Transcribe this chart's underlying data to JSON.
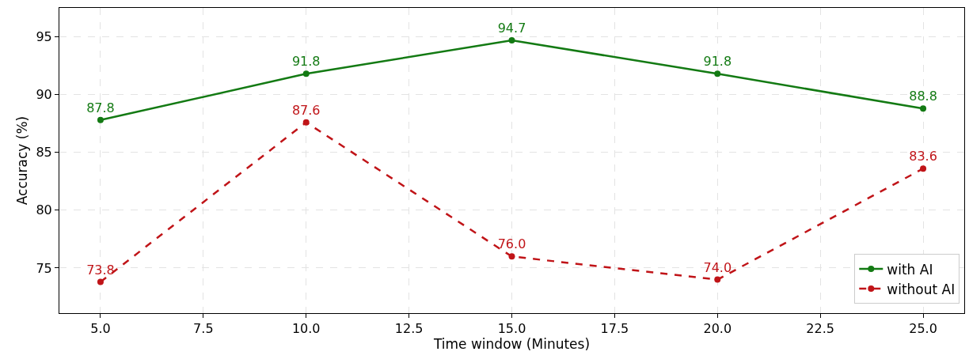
{
  "chart_data": {
    "type": "line",
    "xlabel": "Time window (Minutes)",
    "ylabel": "Accuracy (%)",
    "x": [
      5,
      10,
      15,
      20,
      25
    ],
    "series": [
      {
        "name": "with AI",
        "color": "#137a13",
        "values": [
          87.8,
          91.8,
          94.7,
          91.8,
          88.8
        ],
        "value_labels": [
          "87.8",
          "91.8",
          "94.7",
          "91.8",
          "88.8"
        ],
        "line_style": "solid"
      },
      {
        "name": "without AI",
        "color": "#c01418",
        "values": [
          73.8,
          87.6,
          76.0,
          74.0,
          83.6
        ],
        "value_labels": [
          "73.8",
          "87.6",
          "76.0",
          "74.0",
          "83.6"
        ],
        "line_style": "dashed"
      }
    ],
    "marker": "circle",
    "grid": true,
    "legend": "bottom right",
    "xlim": [
      4.0,
      26.0
    ],
    "xticks": [
      {
        "value": 5,
        "label": "5.0"
      },
      {
        "value": 7.5,
        "label": "7.5"
      },
      {
        "value": 10,
        "label": "10.0"
      },
      {
        "value": 12.5,
        "label": "12.5"
      },
      {
        "value": 15,
        "label": "15.0"
      },
      {
        "value": 17.5,
        "label": "17.5"
      },
      {
        "value": 20,
        "label": "20.0"
      },
      {
        "value": 22.5,
        "label": "22.5"
      },
      {
        "value": 25,
        "label": "25.0"
      }
    ],
    "ylim": [
      71.1,
      97.5
    ],
    "yticks": [
      75,
      80,
      85,
      90,
      95
    ]
  }
}
